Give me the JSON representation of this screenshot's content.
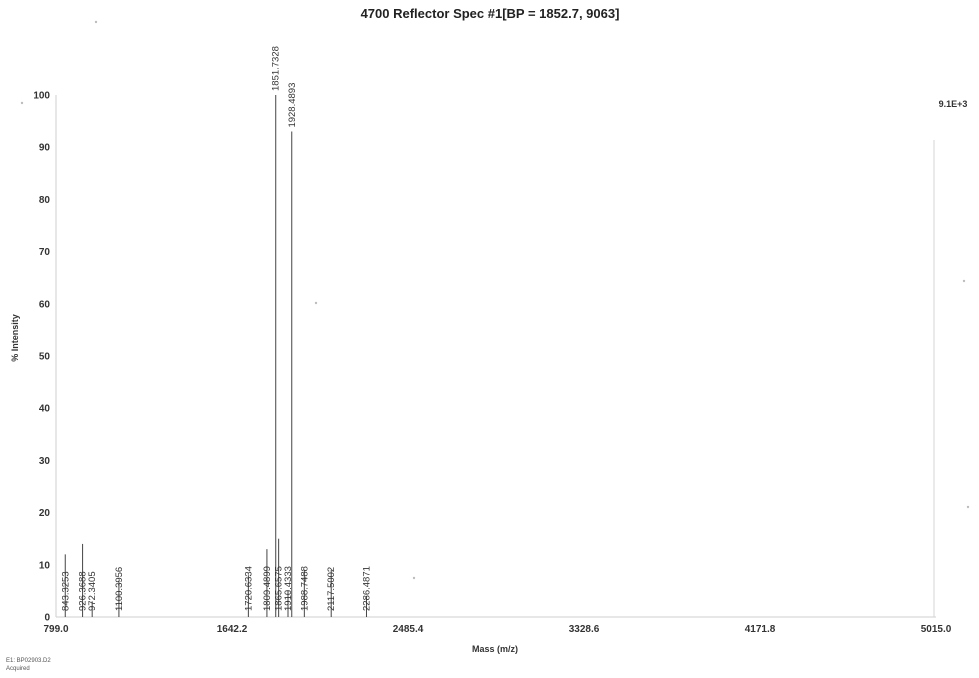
{
  "chart_data": {
    "type": "line",
    "title": "4700 Reflector Spec #1[BP = 1852.7, 9063]",
    "xlabel": "Mass (m/z)",
    "ylabel": "% Intensity",
    "xlim": [
      799.0,
      5015.0
    ],
    "ylim": [
      0,
      100
    ],
    "x_ticks": [
      "799.0",
      "1642.2",
      "2485.4",
      "3328.6",
      "4171.8",
      "5015.0"
    ],
    "y_ticks": [
      "0",
      "10",
      "20",
      "30",
      "40",
      "50",
      "60",
      "70",
      "80",
      "90",
      "100"
    ],
    "intensity_scale_label": "9.1E+3",
    "footer_lines": [
      "E1: BP02903.D2",
      "Acquired"
    ],
    "grid": false,
    "peaks": [
      {
        "x": 843.3253,
        "y": 12,
        "label": "843.3253"
      },
      {
        "x": 926.3688,
        "y": 14,
        "label": "926.3688"
      },
      {
        "x": 972.3405,
        "y": 3,
        "label": "972.3405"
      },
      {
        "x": 1100.3956,
        "y": 7,
        "label": "1100.3956"
      },
      {
        "x": 1720.6334,
        "y": 8,
        "label": "1720.6334"
      },
      {
        "x": 1809.4899,
        "y": 13,
        "label": "1809.4899"
      },
      {
        "x": 1851.7328,
        "y": 100,
        "label": "1851.7328"
      },
      {
        "x": 1865.6575,
        "y": 15,
        "label": "1865.6575"
      },
      {
        "x": 1910.4333,
        "y": 5,
        "label": "1910.4333"
      },
      {
        "x": 1928.4893,
        "y": 93,
        "label": "1928.4893"
      },
      {
        "x": 1988.7488,
        "y": 9,
        "label": "1988.7488"
      },
      {
        "x": 2117.5002,
        "y": 9,
        "label": "2117.5002"
      },
      {
        "x": 2286.4871,
        "y": 4,
        "label": "2286.4871"
      }
    ]
  }
}
